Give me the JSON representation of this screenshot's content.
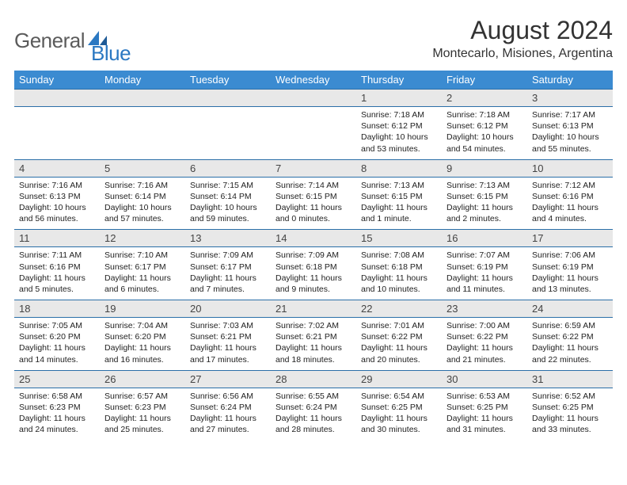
{
  "logo": {
    "text1": "General",
    "text2": "Blue",
    "color1": "#5b5b5b",
    "color2": "#2b78c2",
    "shape_color": "#2b78c2"
  },
  "title": "August 2024",
  "location": "Montecarlo, Misiones, Argentina",
  "header_bg": "#3b8bd1",
  "header_fg": "#ffffff",
  "daynum_bg": "#e8e8e8",
  "border_color": "#2b6fa8",
  "weekdays": [
    "Sunday",
    "Monday",
    "Tuesday",
    "Wednesday",
    "Thursday",
    "Friday",
    "Saturday"
  ],
  "weeks": [
    [
      null,
      null,
      null,
      null,
      {
        "n": "1",
        "sr": "7:18 AM",
        "ss": "6:12 PM",
        "dl": "10 hours and 53 minutes."
      },
      {
        "n": "2",
        "sr": "7:18 AM",
        "ss": "6:12 PM",
        "dl": "10 hours and 54 minutes."
      },
      {
        "n": "3",
        "sr": "7:17 AM",
        "ss": "6:13 PM",
        "dl": "10 hours and 55 minutes."
      }
    ],
    [
      {
        "n": "4",
        "sr": "7:16 AM",
        "ss": "6:13 PM",
        "dl": "10 hours and 56 minutes."
      },
      {
        "n": "5",
        "sr": "7:16 AM",
        "ss": "6:14 PM",
        "dl": "10 hours and 57 minutes."
      },
      {
        "n": "6",
        "sr": "7:15 AM",
        "ss": "6:14 PM",
        "dl": "10 hours and 59 minutes."
      },
      {
        "n": "7",
        "sr": "7:14 AM",
        "ss": "6:15 PM",
        "dl": "11 hours and 0 minutes."
      },
      {
        "n": "8",
        "sr": "7:13 AM",
        "ss": "6:15 PM",
        "dl": "11 hours and 1 minute."
      },
      {
        "n": "9",
        "sr": "7:13 AM",
        "ss": "6:15 PM",
        "dl": "11 hours and 2 minutes."
      },
      {
        "n": "10",
        "sr": "7:12 AM",
        "ss": "6:16 PM",
        "dl": "11 hours and 4 minutes."
      }
    ],
    [
      {
        "n": "11",
        "sr": "7:11 AM",
        "ss": "6:16 PM",
        "dl": "11 hours and 5 minutes."
      },
      {
        "n": "12",
        "sr": "7:10 AM",
        "ss": "6:17 PM",
        "dl": "11 hours and 6 minutes."
      },
      {
        "n": "13",
        "sr": "7:09 AM",
        "ss": "6:17 PM",
        "dl": "11 hours and 7 minutes."
      },
      {
        "n": "14",
        "sr": "7:09 AM",
        "ss": "6:18 PM",
        "dl": "11 hours and 9 minutes."
      },
      {
        "n": "15",
        "sr": "7:08 AM",
        "ss": "6:18 PM",
        "dl": "11 hours and 10 minutes."
      },
      {
        "n": "16",
        "sr": "7:07 AM",
        "ss": "6:19 PM",
        "dl": "11 hours and 11 minutes."
      },
      {
        "n": "17",
        "sr": "7:06 AM",
        "ss": "6:19 PM",
        "dl": "11 hours and 13 minutes."
      }
    ],
    [
      {
        "n": "18",
        "sr": "7:05 AM",
        "ss": "6:20 PM",
        "dl": "11 hours and 14 minutes."
      },
      {
        "n": "19",
        "sr": "7:04 AM",
        "ss": "6:20 PM",
        "dl": "11 hours and 16 minutes."
      },
      {
        "n": "20",
        "sr": "7:03 AM",
        "ss": "6:21 PM",
        "dl": "11 hours and 17 minutes."
      },
      {
        "n": "21",
        "sr": "7:02 AM",
        "ss": "6:21 PM",
        "dl": "11 hours and 18 minutes."
      },
      {
        "n": "22",
        "sr": "7:01 AM",
        "ss": "6:22 PM",
        "dl": "11 hours and 20 minutes."
      },
      {
        "n": "23",
        "sr": "7:00 AM",
        "ss": "6:22 PM",
        "dl": "11 hours and 21 minutes."
      },
      {
        "n": "24",
        "sr": "6:59 AM",
        "ss": "6:22 PM",
        "dl": "11 hours and 22 minutes."
      }
    ],
    [
      {
        "n": "25",
        "sr": "6:58 AM",
        "ss": "6:23 PM",
        "dl": "11 hours and 24 minutes."
      },
      {
        "n": "26",
        "sr": "6:57 AM",
        "ss": "6:23 PM",
        "dl": "11 hours and 25 minutes."
      },
      {
        "n": "27",
        "sr": "6:56 AM",
        "ss": "6:24 PM",
        "dl": "11 hours and 27 minutes."
      },
      {
        "n": "28",
        "sr": "6:55 AM",
        "ss": "6:24 PM",
        "dl": "11 hours and 28 minutes."
      },
      {
        "n": "29",
        "sr": "6:54 AM",
        "ss": "6:25 PM",
        "dl": "11 hours and 30 minutes."
      },
      {
        "n": "30",
        "sr": "6:53 AM",
        "ss": "6:25 PM",
        "dl": "11 hours and 31 minutes."
      },
      {
        "n": "31",
        "sr": "6:52 AM",
        "ss": "6:25 PM",
        "dl": "11 hours and 33 minutes."
      }
    ]
  ],
  "labels": {
    "sunrise": "Sunrise:",
    "sunset": "Sunset:",
    "daylight": "Daylight:"
  }
}
